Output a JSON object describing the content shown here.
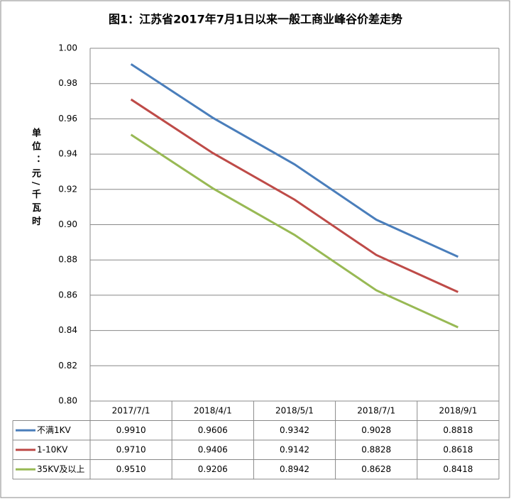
{
  "chart_data": {
    "type": "line",
    "title": "图1：江苏省2017年7月1日以来一般工商业峰谷价差走势",
    "y_label": "单位：元/千瓦时",
    "categories": [
      "2017/7/1",
      "2018/4/1",
      "2018/5/1",
      "2018/7/1",
      "2018/9/1"
    ],
    "series": [
      {
        "name": "不满1KV",
        "color": "#4a7ebb",
        "values": [
          0.991,
          0.9606,
          0.9342,
          0.9028,
          0.8818
        ],
        "value_labels": [
          "0.9910",
          "0.9606",
          "0.9342",
          "0.9028",
          "0.8818"
        ]
      },
      {
        "name": "1-10KV",
        "color": "#be4b48",
        "values": [
          0.971,
          0.9406,
          0.9142,
          0.8828,
          0.8618
        ],
        "value_labels": [
          "0.9710",
          "0.9406",
          "0.9142",
          "0.8828",
          "0.8618"
        ]
      },
      {
        "name": "35KV及以上",
        "color": "#98b954",
        "values": [
          0.951,
          0.9206,
          0.8942,
          0.8628,
          0.8418
        ],
        "value_labels": [
          "0.9510",
          "0.9206",
          "0.8942",
          "0.8628",
          "0.8418"
        ]
      }
    ],
    "ylim": [
      0.8,
      1.0
    ],
    "yticks": [
      {
        "value": 0.8,
        "label": "0.80"
      },
      {
        "value": 0.82,
        "label": "0.82"
      },
      {
        "value": 0.84,
        "label": "0.84"
      },
      {
        "value": 0.86,
        "label": "0.86"
      },
      {
        "value": 0.88,
        "label": "0.88"
      },
      {
        "value": 0.9,
        "label": "0.90"
      },
      {
        "value": 0.92,
        "label": "0.92"
      },
      {
        "value": 0.94,
        "label": "0.94"
      },
      {
        "value": 0.96,
        "label": "0.96"
      },
      {
        "value": 0.98,
        "label": "0.98"
      },
      {
        "value": 1.0,
        "label": "1.00"
      }
    ],
    "grid": true
  }
}
